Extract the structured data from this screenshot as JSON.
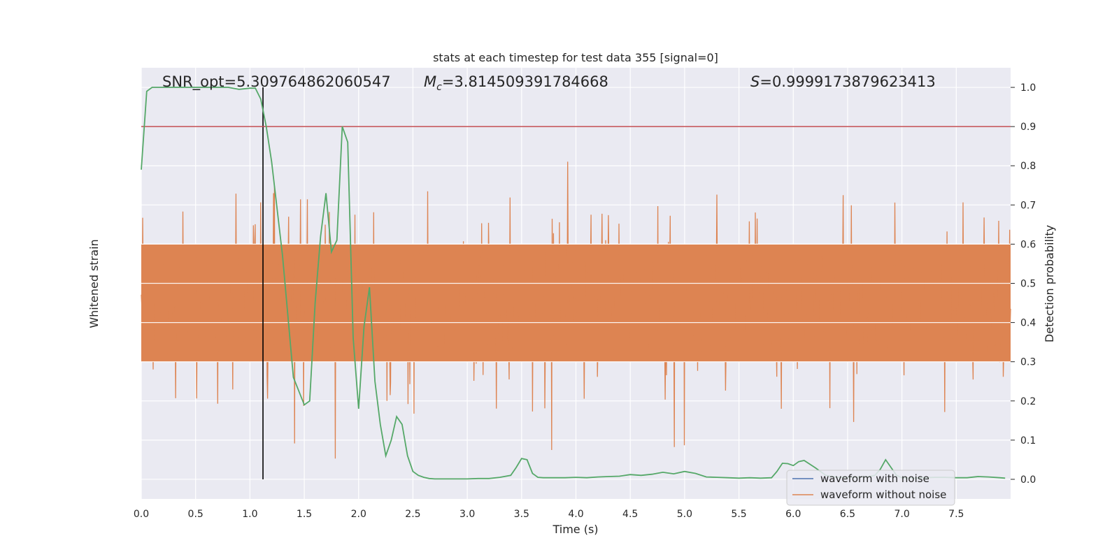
{
  "chart_data": {
    "type": "line",
    "title": "stats at each timestep for test data 355 [signal=0]",
    "xlabel": "Time (s)",
    "ylabel_left": "Whitened strain",
    "ylabel_right": "Detection probability",
    "xlim": [
      0,
      8
    ],
    "ylim_right": [
      -0.05,
      1.05
    ],
    "x_ticks": [
      "0.0",
      "0.5",
      "1.0",
      "1.5",
      "2.0",
      "2.5",
      "3.0",
      "3.5",
      "4.0",
      "4.5",
      "5.0",
      "5.5",
      "6.0",
      "6.5",
      "7.0",
      "7.5"
    ],
    "y_ticks_right": [
      "0.0",
      "0.1",
      "0.2",
      "0.3",
      "0.4",
      "0.5",
      "0.6",
      "0.7",
      "0.8",
      "0.9",
      "1.0"
    ],
    "annotations": {
      "snr": "SNR_opt=5.309764862060547",
      "mc_prefix": "M",
      "mc_sub": "c",
      "mc_value": "=3.814509391784668",
      "s_prefix": "S",
      "s_value": "=0.9999173879623413"
    },
    "threshold": 0.9,
    "marker_time": 1.12,
    "legend": [
      "waveform with noise",
      "waveform without noise"
    ],
    "legend_location": "lower-right",
    "grid": true,
    "colors": {
      "background": "#eaeaf2",
      "grid": "#ffffff",
      "noise_waveform": "#4c72b0",
      "clean_waveform": "#dd8452",
      "probability": "#55a868",
      "threshold": "#c44e52",
      "marker": "#000000",
      "text": "#262626"
    },
    "probability_series": {
      "name": "",
      "x": [
        0.0,
        0.05,
        0.1,
        0.2,
        0.3,
        0.4,
        0.5,
        0.6,
        0.7,
        0.8,
        0.9,
        1.0,
        1.05,
        1.1,
        1.15,
        1.2,
        1.3,
        1.4,
        1.5,
        1.55,
        1.6,
        1.65,
        1.7,
        1.75,
        1.8,
        1.85,
        1.9,
        1.95,
        2.0,
        2.05,
        2.1,
        2.15,
        2.2,
        2.25,
        2.3,
        2.35,
        2.4,
        2.45,
        2.5,
        2.55,
        2.6,
        2.65,
        2.7,
        2.8,
        2.9,
        3.0,
        3.1,
        3.2,
        3.3,
        3.4,
        3.45,
        3.5,
        3.55,
        3.6,
        3.65,
        3.7,
        3.8,
        3.9,
        4.0,
        4.1,
        4.2,
        4.3,
        4.4,
        4.5,
        4.6,
        4.7,
        4.8,
        4.9,
        5.0,
        5.1,
        5.2,
        5.3,
        5.4,
        5.5,
        5.6,
        5.7,
        5.8,
        5.85,
        5.9,
        5.95,
        6.0,
        6.05,
        6.1,
        6.2,
        6.3,
        6.4,
        6.5,
        6.6,
        6.7,
        6.75,
        6.8,
        6.85,
        6.9,
        6.95,
        7.0,
        7.1,
        7.2,
        7.3,
        7.4,
        7.5,
        7.6,
        7.7,
        7.8,
        7.9,
        7.95
      ],
      "y": [
        0.79,
        0.99,
        1.0,
        1.0,
        1.0,
        1.0,
        1.0,
        1.0,
        1.0,
        1.0,
        0.995,
        0.998,
        0.998,
        0.97,
        0.9,
        0.81,
        0.57,
        0.26,
        0.19,
        0.2,
        0.45,
        0.62,
        0.73,
        0.58,
        0.61,
        0.9,
        0.86,
        0.36,
        0.18,
        0.39,
        0.49,
        0.25,
        0.14,
        0.06,
        0.1,
        0.16,
        0.14,
        0.06,
        0.02,
        0.01,
        0.005,
        0.002,
        0.001,
        0.001,
        0.001,
        0.001,
        0.002,
        0.002,
        0.005,
        0.01,
        0.03,
        0.053,
        0.05,
        0.015,
        0.005,
        0.004,
        0.004,
        0.004,
        0.005,
        0.004,
        0.006,
        0.007,
        0.008,
        0.012,
        0.01,
        0.013,
        0.018,
        0.014,
        0.02,
        0.015,
        0.006,
        0.005,
        0.004,
        0.003,
        0.004,
        0.003,
        0.004,
        0.02,
        0.041,
        0.04,
        0.035,
        0.045,
        0.048,
        0.03,
        0.01,
        0.005,
        0.005,
        0.006,
        0.007,
        0.01,
        0.025,
        0.05,
        0.03,
        0.01,
        0.004,
        0.003,
        0.004,
        0.005,
        0.005,
        0.004,
        0.004,
        0.007,
        0.006,
        0.004,
        0.003
      ]
    }
  }
}
